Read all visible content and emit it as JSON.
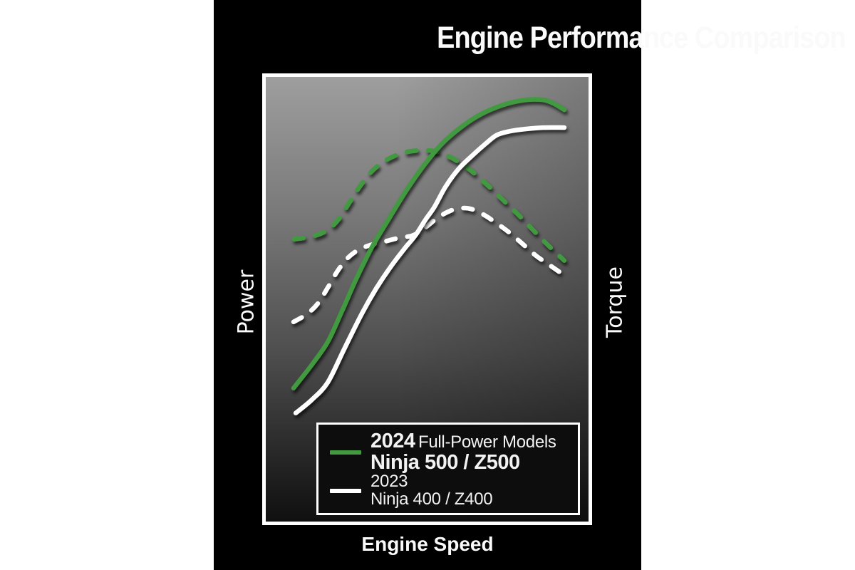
{
  "title": "Engine Performance Comparison",
  "axes": {
    "left_label": "Power",
    "right_label": "Torque",
    "bottom_label": "Engine Speed"
  },
  "colors": {
    "canvas_black": "#000000",
    "outer_white": "#ffffff",
    "accent_green": "#429a40",
    "line_white": "#ffffff",
    "plot_gradient_top": "#9e9e9e",
    "plot_gradient_bottom": "#101010"
  },
  "legend": {
    "entries": [
      {
        "year": "2024",
        "suffix": "Full-Power Models",
        "models": "Ninja 500 / Z500",
        "color": "#429a40",
        "emphasis": true
      },
      {
        "year": "2023",
        "suffix": "",
        "models": "Ninja 400 / Z400",
        "color": "#ffffff",
        "emphasis": false
      }
    ]
  },
  "chart_data": {
    "type": "line",
    "title": "Engine Performance Comparison",
    "xlabel": "Engine Speed",
    "ylabel_left": "Power",
    "ylabel_right": "Torque",
    "axis_ranges": "unlabeled axes; points are normalized fractions of plot area (x: engine speed 0-1, y: value 0-1 from bottom)",
    "grid": false,
    "legend_position": "inside bottom-right",
    "series": [
      {
        "id": "torque-2023",
        "label": "2023 Ninja 400 / Z400 — Torque",
        "axis": "right",
        "line": "dashed",
        "color": "#ffffff",
        "points": [
          [
            0.086,
            0.449
          ],
          [
            0.126,
            0.466
          ],
          [
            0.161,
            0.49
          ],
          [
            0.192,
            0.526
          ],
          [
            0.223,
            0.564
          ],
          [
            0.254,
            0.593
          ],
          [
            0.287,
            0.611
          ],
          [
            0.325,
            0.622
          ],
          [
            0.369,
            0.63
          ],
          [
            0.413,
            0.638
          ],
          [
            0.457,
            0.644
          ],
          [
            0.497,
            0.663
          ],
          [
            0.534,
            0.684
          ],
          [
            0.572,
            0.699
          ],
          [
            0.607,
            0.705
          ],
          [
            0.642,
            0.702
          ],
          [
            0.678,
            0.689
          ],
          [
            0.715,
            0.671
          ],
          [
            0.753,
            0.651
          ],
          [
            0.795,
            0.625
          ],
          [
            0.837,
            0.598
          ],
          [
            0.879,
            0.577
          ],
          [
            0.921,
            0.556
          ]
        ]
      },
      {
        "id": "torque-2024",
        "label": "2024 Ninja 500 / Z500 — Torque",
        "axis": "right",
        "line": "dashed",
        "color": "#429a40",
        "points": [
          [
            0.088,
            0.635
          ],
          [
            0.143,
            0.641
          ],
          [
            0.188,
            0.654
          ],
          [
            0.225,
            0.679
          ],
          [
            0.258,
            0.716
          ],
          [
            0.291,
            0.753
          ],
          [
            0.329,
            0.788
          ],
          [
            0.373,
            0.813
          ],
          [
            0.424,
            0.829
          ],
          [
            0.479,
            0.835
          ],
          [
            0.528,
            0.832
          ],
          [
            0.578,
            0.817
          ],
          [
            0.629,
            0.793
          ],
          [
            0.682,
            0.76
          ],
          [
            0.735,
            0.723
          ],
          [
            0.788,
            0.686
          ],
          [
            0.837,
            0.649
          ],
          [
            0.881,
            0.617
          ],
          [
            0.925,
            0.587
          ]
        ]
      },
      {
        "id": "power-2023",
        "label": "2023 Ninja 400 / Z400 — Power",
        "axis": "left",
        "line": "solid",
        "color": "#ffffff",
        "points": [
          [
            0.093,
            0.244
          ],
          [
            0.143,
            0.274
          ],
          [
            0.192,
            0.313
          ],
          [
            0.243,
            0.388
          ],
          [
            0.298,
            0.468
          ],
          [
            0.342,
            0.524
          ],
          [
            0.386,
            0.572
          ],
          [
            0.43,
            0.614
          ],
          [
            0.464,
            0.644
          ],
          [
            0.494,
            0.678
          ],
          [
            0.523,
            0.708
          ],
          [
            0.556,
            0.752
          ],
          [
            0.596,
            0.792
          ],
          [
            0.638,
            0.822
          ],
          [
            0.68,
            0.849
          ],
          [
            0.715,
            0.869
          ],
          [
            0.757,
            0.878
          ],
          [
            0.806,
            0.883
          ],
          [
            0.859,
            0.886
          ],
          [
            0.925,
            0.886
          ]
        ]
      },
      {
        "id": "power-2024",
        "label": "2024 Ninja 500 / Z500 — Power",
        "axis": "left",
        "line": "solid",
        "color": "#429a40",
        "points": [
          [
            0.086,
            0.3
          ],
          [
            0.141,
            0.351
          ],
          [
            0.192,
            0.404
          ],
          [
            0.236,
            0.473
          ],
          [
            0.28,
            0.545
          ],
          [
            0.329,
            0.617
          ],
          [
            0.38,
            0.679
          ],
          [
            0.435,
            0.744
          ],
          [
            0.49,
            0.801
          ],
          [
            0.545,
            0.849
          ],
          [
            0.607,
            0.888
          ],
          [
            0.669,
            0.917
          ],
          [
            0.731,
            0.936
          ],
          [
            0.792,
            0.947
          ],
          [
            0.85,
            0.949
          ],
          [
            0.887,
            0.942
          ],
          [
            0.925,
            0.926
          ]
        ]
      }
    ]
  }
}
